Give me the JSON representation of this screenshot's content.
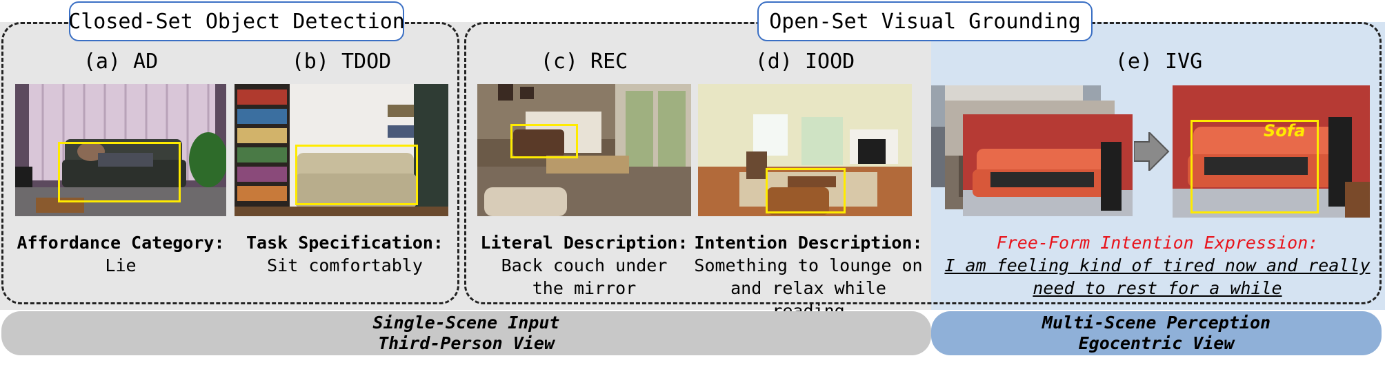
{
  "panels": {
    "closed_set": {
      "title": "Closed-Set Object Detection"
    },
    "open_set": {
      "title": "Open-Set Visual Grounding"
    }
  },
  "tasks": [
    {
      "label": "(a) AD",
      "head": "Affordance Category:",
      "body": "Lie"
    },
    {
      "label": "(b) TDOD",
      "head": "Task Specification:",
      "body": "Sit comfortably"
    },
    {
      "label": "(c) REC",
      "head": "Literal Description:",
      "body": "Back couch under\nthe mirror"
    },
    {
      "label": "(d) IOOD",
      "head": "Intention Description:",
      "body": "Something to lounge on\nand relax while reading"
    },
    {
      "label": "(e) IVG",
      "head": "Free-Form Intention Expression:",
      "body": "I am feeling kind of tired now and really\nneed to rest for a while"
    }
  ],
  "sofa_tag": "Sofa",
  "bars": {
    "left": {
      "line1": "Single-Scene Input",
      "line2": "Third-Person View"
    },
    "right": {
      "line1": "Multi-Scene Perception",
      "line2": "Egocentric View"
    }
  },
  "colors": {
    "ivg_background": "#d5e3f2",
    "left_bar": "#c8c8c8",
    "right_bar": "#8fb0d8",
    "tag_border": "#3a6fc4",
    "bbox": "#ffeb00",
    "intention_red": "#e8131b"
  }
}
